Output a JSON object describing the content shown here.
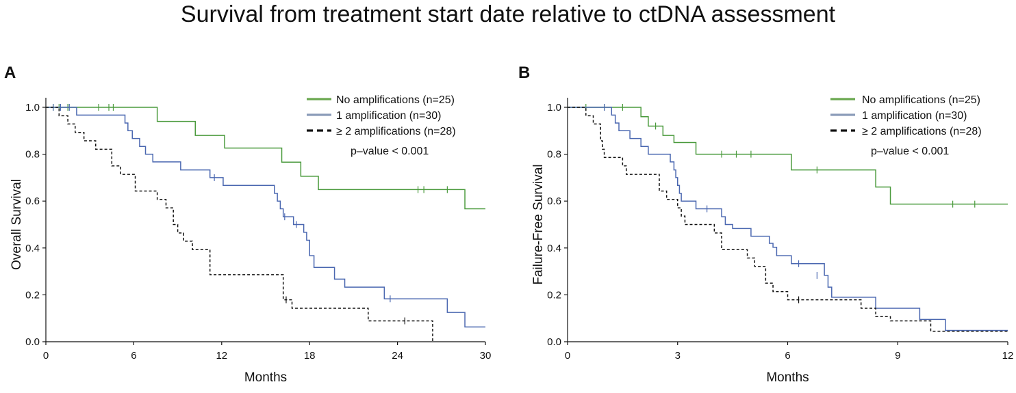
{
  "figure_title": "Survival from treatment start date relative to ctDNA assessment",
  "colors": {
    "green": "#4a9a3c",
    "blue": "#4a67b0",
    "black": "#111111",
    "legend_green": "#6aa84f",
    "legend_blue": "#8a9bb8"
  },
  "chart_data": [
    {
      "panel": "A",
      "type": "line",
      "subtype": "kaplan-meier",
      "xlabel": "Months",
      "ylabel": "Overall Survival",
      "xlim": [
        0,
        30
      ],
      "ylim": [
        0,
        1.0
      ],
      "xticks": [
        0,
        6,
        12,
        18,
        24,
        30
      ],
      "yticks": [
        0.0,
        0.2,
        0.4,
        0.6,
        0.8,
        1.0
      ],
      "ytick_labels": [
        "0.0",
        "0.2",
        "0.4",
        "0.6",
        "0.8",
        "1.0"
      ],
      "legend_position": "top-right",
      "p_value_text": "p–value < 0.001",
      "series": [
        {
          "name": "No amplifications (n=25)",
          "color": "green",
          "dash": "solid",
          "steps": [
            [
              0,
              1.0
            ],
            [
              7.6,
              0.94
            ],
            [
              10.2,
              0.88
            ],
            [
              12.2,
              0.826
            ],
            [
              16.1,
              0.766
            ],
            [
              17.4,
              0.706
            ],
            [
              18.6,
              0.649
            ],
            [
              28.6,
              0.567
            ],
            [
              30,
              0.567
            ]
          ],
          "censor": [
            [
              0.5,
              1.0
            ],
            [
              0.9,
              1.0
            ],
            [
              1.5,
              1.0
            ],
            [
              3.6,
              1.0
            ],
            [
              4.3,
              1.0
            ],
            [
              4.6,
              1.0
            ],
            [
              25.4,
              0.649
            ],
            [
              25.8,
              0.649
            ],
            [
              27.4,
              0.649
            ]
          ]
        },
        {
          "name": "1 amplification (n=30)",
          "color": "blue",
          "dash": "solid",
          "steps": [
            [
              0,
              1.0
            ],
            [
              2.1,
              0.967
            ],
            [
              5.4,
              0.933
            ],
            [
              5.6,
              0.9
            ],
            [
              5.9,
              0.867
            ],
            [
              6.4,
              0.833
            ],
            [
              6.8,
              0.8
            ],
            [
              7.3,
              0.767
            ],
            [
              9.2,
              0.733
            ],
            [
              11.2,
              0.7
            ],
            [
              12.1,
              0.667
            ],
            [
              15.6,
              0.633
            ],
            [
              15.8,
              0.6
            ],
            [
              16.0,
              0.567
            ],
            [
              16.2,
              0.533
            ],
            [
              16.9,
              0.5
            ],
            [
              17.6,
              0.467
            ],
            [
              17.8,
              0.433
            ],
            [
              18.0,
              0.367
            ],
            [
              18.3,
              0.317
            ],
            [
              19.7,
              0.267
            ],
            [
              20.4,
              0.233
            ],
            [
              23.1,
              0.183
            ],
            [
              27.4,
              0.125
            ],
            [
              28.6,
              0.063
            ],
            [
              30,
              0.063
            ]
          ],
          "censor": [
            [
              0.5,
              1.0
            ],
            [
              1.0,
              1.0
            ],
            [
              1.6,
              1.0
            ],
            [
              11.5,
              0.7
            ],
            [
              16.3,
              0.533
            ],
            [
              17.1,
              0.5
            ],
            [
              23.5,
              0.183
            ]
          ]
        },
        {
          "name": "≥ 2 amplifications (n=28)",
          "color": "black",
          "dash": "dashed",
          "steps": [
            [
              0,
              1.0
            ],
            [
              0.9,
              0.964
            ],
            [
              1.5,
              0.929
            ],
            [
              2.0,
              0.893
            ],
            [
              2.6,
              0.857
            ],
            [
              3.4,
              0.821
            ],
            [
              4.5,
              0.75
            ],
            [
              5.1,
              0.714
            ],
            [
              6.1,
              0.643
            ],
            [
              7.6,
              0.607
            ],
            [
              8.2,
              0.571
            ],
            [
              8.7,
              0.5
            ],
            [
              9.0,
              0.464
            ],
            [
              9.4,
              0.429
            ],
            [
              10.0,
              0.393
            ],
            [
              11.2,
              0.286
            ],
            [
              16.2,
              0.179
            ],
            [
              16.8,
              0.143
            ],
            [
              22.0,
              0.089
            ],
            [
              26.4,
              0.0
            ]
          ],
          "censor": [
            [
              16.4,
              0.179
            ],
            [
              24.5,
              0.089
            ]
          ]
        }
      ]
    },
    {
      "panel": "B",
      "type": "line",
      "subtype": "kaplan-meier",
      "xlabel": "Months",
      "ylabel": "Failure-Free Survival",
      "xlim": [
        0,
        12
      ],
      "ylim": [
        0,
        1.0
      ],
      "xticks": [
        0,
        3,
        6,
        9,
        12
      ],
      "yticks": [
        0.0,
        0.2,
        0.4,
        0.6,
        0.8,
        1.0
      ],
      "ytick_labels": [
        "0.0",
        "0.2",
        "0.4",
        "0.6",
        "0.8",
        "1.0"
      ],
      "legend_position": "top-right",
      "p_value_text": "p–value < 0.001",
      "series": [
        {
          "name": "No amplifications (n=25)",
          "color": "green",
          "dash": "solid",
          "steps": [
            [
              0,
              1.0
            ],
            [
              2.0,
              0.96
            ],
            [
              2.2,
              0.92
            ],
            [
              2.6,
              0.88
            ],
            [
              2.9,
              0.85
            ],
            [
              3.5,
              0.8
            ],
            [
              6.1,
              0.733
            ],
            [
              8.4,
              0.66
            ],
            [
              8.8,
              0.587
            ],
            [
              12,
              0.587
            ]
          ],
          "censor": [
            [
              0.5,
              1.0
            ],
            [
              1.0,
              1.0
            ],
            [
              1.5,
              1.0
            ],
            [
              2.4,
              0.92
            ],
            [
              4.2,
              0.8
            ],
            [
              4.6,
              0.8
            ],
            [
              5.0,
              0.8
            ],
            [
              6.8,
              0.733
            ],
            [
              10.5,
              0.587
            ],
            [
              11.1,
              0.587
            ]
          ]
        },
        {
          "name": "1 amplification (n=30)",
          "color": "blue",
          "dash": "solid",
          "steps": [
            [
              0,
              1.0
            ],
            [
              1.2,
              0.967
            ],
            [
              1.3,
              0.933
            ],
            [
              1.4,
              0.9
            ],
            [
              1.7,
              0.867
            ],
            [
              2.0,
              0.833
            ],
            [
              2.2,
              0.8
            ],
            [
              2.8,
              0.767
            ],
            [
              2.9,
              0.733
            ],
            [
              2.95,
              0.7
            ],
            [
              3.0,
              0.667
            ],
            [
              3.05,
              0.633
            ],
            [
              3.1,
              0.6
            ],
            [
              3.5,
              0.567
            ],
            [
              4.2,
              0.533
            ],
            [
              4.3,
              0.5
            ],
            [
              4.5,
              0.483
            ],
            [
              5.0,
              0.45
            ],
            [
              5.5,
              0.42
            ],
            [
              5.6,
              0.403
            ],
            [
              5.7,
              0.367
            ],
            [
              6.1,
              0.333
            ],
            [
              7.0,
              0.283
            ],
            [
              7.1,
              0.233
            ],
            [
              7.2,
              0.19
            ],
            [
              8.4,
              0.143
            ],
            [
              9.6,
              0.095
            ],
            [
              10.3,
              0.048
            ],
            [
              12,
              0.048
            ]
          ],
          "censor": [
            [
              1.0,
              1.0
            ],
            [
              3.8,
              0.567
            ],
            [
              6.3,
              0.333
            ],
            [
              6.8,
              0.283
            ]
          ]
        },
        {
          "name": "≥ 2 amplifications (n=28)",
          "color": "black",
          "dash": "dashed",
          "steps": [
            [
              0,
              1.0
            ],
            [
              0.5,
              0.964
            ],
            [
              0.7,
              0.929
            ],
            [
              0.9,
              0.857
            ],
            [
              0.95,
              0.821
            ],
            [
              1.0,
              0.786
            ],
            [
              1.5,
              0.75
            ],
            [
              1.6,
              0.714
            ],
            [
              2.5,
              0.643
            ],
            [
              2.7,
              0.607
            ],
            [
              3.0,
              0.571
            ],
            [
              3.1,
              0.536
            ],
            [
              3.2,
              0.5
            ],
            [
              4.0,
              0.464
            ],
            [
              4.2,
              0.393
            ],
            [
              4.9,
              0.357
            ],
            [
              5.1,
              0.321
            ],
            [
              5.4,
              0.25
            ],
            [
              5.6,
              0.214
            ],
            [
              6.0,
              0.179
            ],
            [
              8.0,
              0.143
            ],
            [
              8.4,
              0.107
            ],
            [
              8.8,
              0.089
            ],
            [
              9.9,
              0.045
            ],
            [
              12,
              0.045
            ]
          ],
          "censor": [
            [
              6.3,
              0.179
            ]
          ]
        }
      ]
    }
  ]
}
